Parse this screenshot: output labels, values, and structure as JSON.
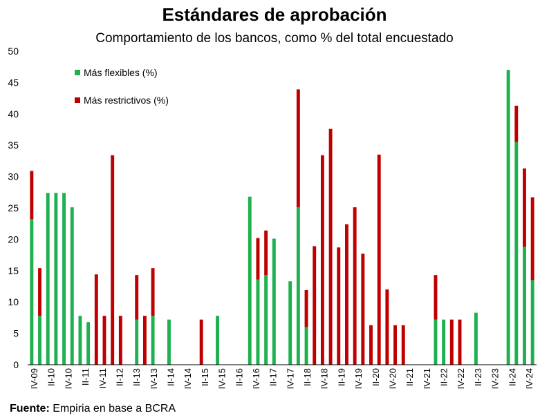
{
  "chart_data": {
    "type": "bar",
    "stacked": true,
    "title": "Estándares de aprobación",
    "subtitle": "Comportamiento de los bancos, como % del total encuestado",
    "ylim": [
      0,
      50
    ],
    "yticks": [
      0,
      5,
      10,
      15,
      20,
      25,
      30,
      35,
      40,
      45,
      50
    ],
    "grid": false,
    "legend_position": "top-left",
    "tick_labels": [
      "IV-09",
      "II-10",
      "IV-10",
      "II-11",
      "IV-11",
      "II-12",
      "II-13",
      "IV-13",
      "II-14",
      "IV-14",
      "II-15",
      "IV-15",
      "II-16",
      "IV-16",
      "II-17",
      "IV-17",
      "II-18",
      "IV-18",
      "II-19",
      "IV-19",
      "II-20",
      "IV-20",
      "II-21",
      "IV-21",
      "II-22",
      "IV-22",
      "II-23",
      "IV-23",
      "II-24",
      "IV-24"
    ],
    "series": [
      {
        "name": "Más flexibles (%)",
        "color": "#1fb04f",
        "values": [
          23.2,
          7.8,
          27.4,
          27.4,
          27.4,
          25.1,
          7.8,
          6.8,
          0,
          0,
          0,
          0,
          0,
          7.2,
          0,
          7.8,
          0,
          7.2,
          0,
          0,
          0,
          0,
          0,
          7.8,
          0,
          0,
          0,
          26.8,
          13.6,
          14.3,
          20.1,
          0,
          13.3,
          25.1,
          6.0,
          0,
          0,
          0,
          0,
          0,
          0,
          0,
          0,
          0,
          0,
          0,
          0,
          0,
          0,
          0,
          7.2,
          7.2,
          0,
          0,
          0,
          8.3,
          0,
          0,
          0,
          47.0,
          35.5,
          18.8,
          13.5
        ]
      },
      {
        "name": "Más restrictivos (%)",
        "color": "#c00000",
        "values": [
          7.7,
          7.6,
          0,
          0,
          0,
          0,
          0,
          0,
          14.4,
          7.8,
          33.4,
          7.8,
          0,
          7.1,
          7.8,
          7.6,
          0,
          0,
          0,
          0,
          0,
          7.2,
          0,
          0,
          0,
          0,
          0,
          0,
          6.6,
          7.1,
          0,
          0,
          0,
          18.8,
          5.9,
          18.9,
          33.4,
          37.6,
          18.7,
          22.4,
          25.1,
          17.7,
          6.3,
          33.5,
          12.0,
          6.3,
          6.3,
          0,
          0,
          0,
          7.1,
          0,
          7.2,
          7.2,
          0,
          0,
          0,
          0,
          0,
          0,
          5.8,
          12.5,
          13.2
        ]
      }
    ],
    "source_label": "Fuente:",
    "source_text": "Empiria en base a BCRA"
  }
}
